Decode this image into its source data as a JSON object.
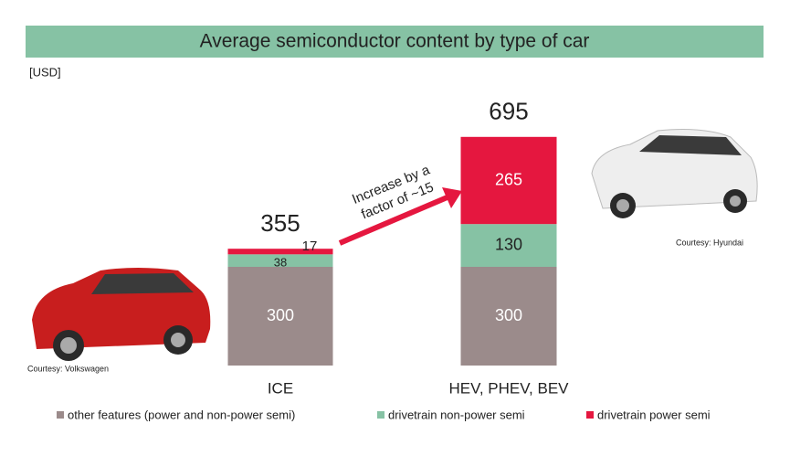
{
  "chart_data": {
    "type": "stacked_bar",
    "title": "Average semiconductor content by type of car",
    "unit_label": "[USD]",
    "categories": [
      "ICE",
      "HEV, PHEV, BEV"
    ],
    "series": [
      {
        "name": "other features (power and non-power semi)",
        "color": "#9b8b8b",
        "values": [
          300,
          300
        ]
      },
      {
        "name": "drivetrain non-power semi",
        "color": "#86c2a4",
        "values": [
          38,
          130
        ]
      },
      {
        "name": "drivetrain power semi",
        "color": "#e5173f",
        "values": [
          17,
          265
        ]
      }
    ],
    "totals": [
      355,
      695
    ],
    "annotation": [
      "Increase by a",
      "factor of ~15"
    ],
    "credits": [
      "Courtesy: Volkswagen",
      "Courtesy: Hyundai"
    ]
  }
}
